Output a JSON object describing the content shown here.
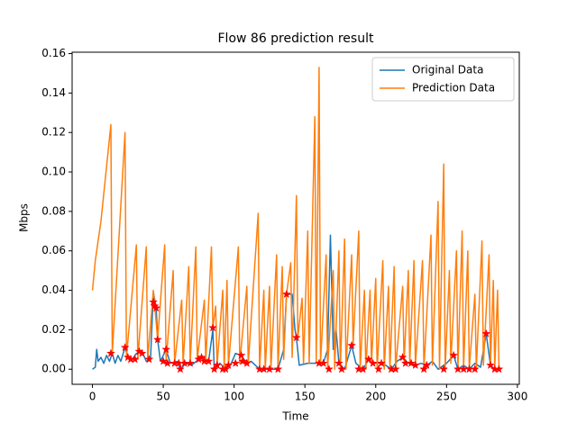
{
  "chart_data": {
    "type": "line",
    "title": "Flow 86 prediction result",
    "x_label": "Time",
    "y_label": "Mbps",
    "xlim": [
      -14.35,
      301.35
    ],
    "xticks": [
      0,
      50,
      100,
      150,
      200,
      250,
      300
    ],
    "ylim": [
      -0.00765,
      0.1607
    ],
    "yticks": [
      {
        "value": 0,
        "label": "0.00"
      },
      {
        "value": 0.02,
        "label": "0.02"
      },
      {
        "value": 0.04,
        "label": "0.04"
      },
      {
        "value": 0.06,
        "label": "0.06"
      },
      {
        "value": 0.08,
        "label": "0.08"
      },
      {
        "value": 0.1,
        "label": "0.10"
      },
      {
        "value": 0.12,
        "label": "0.12"
      },
      {
        "value": 0.14,
        "label": "0.14"
      },
      {
        "value": 0.16,
        "label": "0.16"
      }
    ],
    "legend": "upper right",
    "series": [
      {
        "name": "Original Data",
        "color": "#1f77b4",
        "x": [
          0,
          2,
          3,
          4,
          6,
          8,
          10,
          12,
          14,
          16,
          18,
          20,
          23,
          25,
          28,
          31,
          35,
          38,
          41,
          43,
          45,
          46,
          48,
          52,
          55,
          60,
          62,
          66,
          70,
          75,
          79,
          82,
          85,
          86,
          90,
          94,
          98,
          101,
          105,
          109,
          112,
          118,
          125,
          131,
          135,
          137,
          141,
          143,
          144,
          146,
          152,
          158,
          163,
          166,
          168,
          170,
          172,
          174,
          178,
          183,
          186,
          191,
          195,
          200,
          205,
          211,
          215,
          219,
          223,
          228,
          232,
          236,
          240,
          244,
          250,
          255,
          258,
          262,
          266,
          270,
          274,
          278,
          281,
          284,
          287
        ],
        "values": [
          0,
          0.001,
          0.01,
          0.004,
          0.006,
          0.003,
          0.007,
          0.004,
          0.008,
          0.003,
          0.007,
          0.004,
          0.011,
          0.006,
          0.005,
          0.008,
          0.009,
          0.004,
          0.005,
          0.039,
          0.031,
          0.015,
          0.004,
          0.01,
          0.003,
          0.004,
          0.0,
          0.003,
          0.002,
          0.005,
          0.006,
          0.004,
          0.02,
          0.0,
          0.003,
          0.0,
          0.003,
          0.008,
          0.007,
          0.003,
          0.004,
          0.0,
          0.0,
          0.0,
          0.01,
          0.038,
          0.038,
          0.02,
          0.016,
          0.002,
          0.003,
          0.003,
          0.003,
          0.01,
          0.068,
          0.01,
          0.02,
          0.003,
          0.0,
          0.012,
          0.003,
          0.0,
          0.005,
          0.003,
          0.003,
          0.0,
          0.004,
          0.006,
          0.003,
          0.002,
          0.003,
          0.002,
          0.004,
          0.0,
          0.003,
          0.007,
          0.0,
          0.002,
          0.0,
          0.003,
          0.001,
          0.018,
          0.002,
          0.0,
          0.0
        ]
      },
      {
        "name": "Prediction Data",
        "color": "#ff7f0e",
        "x": [
          0,
          2,
          6,
          13,
          14,
          23,
          24,
          31,
          32,
          38,
          39,
          43,
          44,
          46,
          51,
          52,
          57,
          58,
          63,
          64,
          68,
          69,
          73,
          74,
          79,
          80,
          84,
          85,
          87,
          88,
          92,
          93,
          95,
          96,
          103,
          104,
          109,
          110,
          117,
          118,
          121,
          122,
          125,
          126,
          130,
          131,
          134,
          135,
          137,
          140,
          141,
          144,
          145,
          148,
          149,
          152,
          153,
          157,
          158,
          160,
          161,
          165,
          166,
          170,
          171,
          174,
          175,
          178,
          179,
          183,
          184,
          188,
          189,
          192,
          193,
          196,
          197,
          200,
          201,
          205,
          206,
          209,
          210,
          213,
          214,
          219,
          220,
          223,
          224,
          227,
          228,
          233,
          234,
          239,
          240,
          244,
          245,
          248,
          249,
          252,
          253,
          257,
          258,
          261,
          262,
          265,
          266,
          270,
          271,
          275,
          276,
          280,
          281,
          283,
          284,
          286,
          287
        ],
        "values": [
          0.04,
          0.055,
          0.075,
          0.124,
          0.008,
          0.12,
          0.006,
          0.063,
          0.005,
          0.062,
          0.005,
          0.04,
          0.032,
          0.015,
          0.063,
          0.004,
          0.05,
          0.003,
          0.035,
          0.003,
          0.052,
          0.003,
          0.062,
          0.005,
          0.035,
          0.004,
          0.062,
          0.021,
          0.032,
          0.002,
          0.04,
          0.0,
          0.045,
          0.002,
          0.062,
          0.003,
          0.042,
          0.003,
          0.079,
          0.0,
          0.04,
          0.0,
          0.042,
          0.0,
          0.058,
          0.0,
          0.052,
          0.005,
          0.038,
          0.054,
          0.006,
          0.088,
          0.016,
          0.036,
          0.003,
          0.07,
          0.003,
          0.128,
          0.003,
          0.153,
          0.003,
          0.058,
          0.0,
          0.05,
          0.0,
          0.06,
          0.0,
          0.066,
          0.0,
          0.058,
          0.012,
          0.07,
          0.0,
          0.04,
          0.0,
          0.04,
          0.003,
          0.046,
          0.0,
          0.055,
          0.0,
          0.042,
          0.0,
          0.052,
          0.0,
          0.042,
          0.003,
          0.05,
          0.003,
          0.055,
          0.002,
          0.055,
          0.0,
          0.068,
          0.002,
          0.085,
          0.0,
          0.104,
          0.0,
          0.05,
          0.003,
          0.06,
          0.0,
          0.07,
          0.0,
          0.06,
          0.0,
          0.038,
          0.0,
          0.065,
          0.002,
          0.058,
          0.002,
          0.045,
          0.0,
          0.04,
          0.0
        ]
      }
    ],
    "markers": {
      "color": "#ff0000",
      "x": [
        13,
        23,
        25,
        27,
        30,
        33,
        35,
        40,
        43,
        44,
        45,
        46,
        50,
        52,
        53,
        58,
        61,
        62,
        65,
        69,
        75,
        77,
        79,
        82,
        85,
        86,
        88,
        92,
        94,
        96,
        101,
        105,
        106,
        109,
        118,
        121,
        125,
        131,
        137,
        144,
        160,
        163,
        167,
        174,
        176,
        183,
        188,
        191,
        195,
        198,
        202,
        204,
        211,
        214,
        219,
        221,
        225,
        228,
        234,
        236,
        248,
        255,
        258,
        262,
        266,
        270,
        278,
        281,
        284,
        287
      ],
      "values": [
        0.008,
        0.011,
        0.006,
        0.005,
        0.005,
        0.009,
        0.008,
        0.005,
        0.034,
        0.032,
        0.031,
        0.015,
        0.004,
        0.01,
        0.003,
        0.003,
        0.003,
        0.0,
        0.003,
        0.003,
        0.005,
        0.006,
        0.004,
        0.004,
        0.021,
        0.0,
        0.002,
        0.0,
        0.0,
        0.002,
        0.003,
        0.007,
        0.004,
        0.003,
        0.0,
        0.0,
        0.0,
        0.0,
        0.038,
        0.016,
        0.003,
        0.003,
        0.0,
        0.003,
        0.0,
        0.012,
        0.0,
        0.0,
        0.005,
        0.003,
        0.0,
        0.003,
        0.0,
        0.0,
        0.006,
        0.003,
        0.003,
        0.002,
        0.0,
        0.002,
        0.0,
        0.007,
        0.0,
        0.0,
        0.0,
        0.0,
        0.018,
        0.002,
        0.0,
        0.0
      ]
    }
  }
}
